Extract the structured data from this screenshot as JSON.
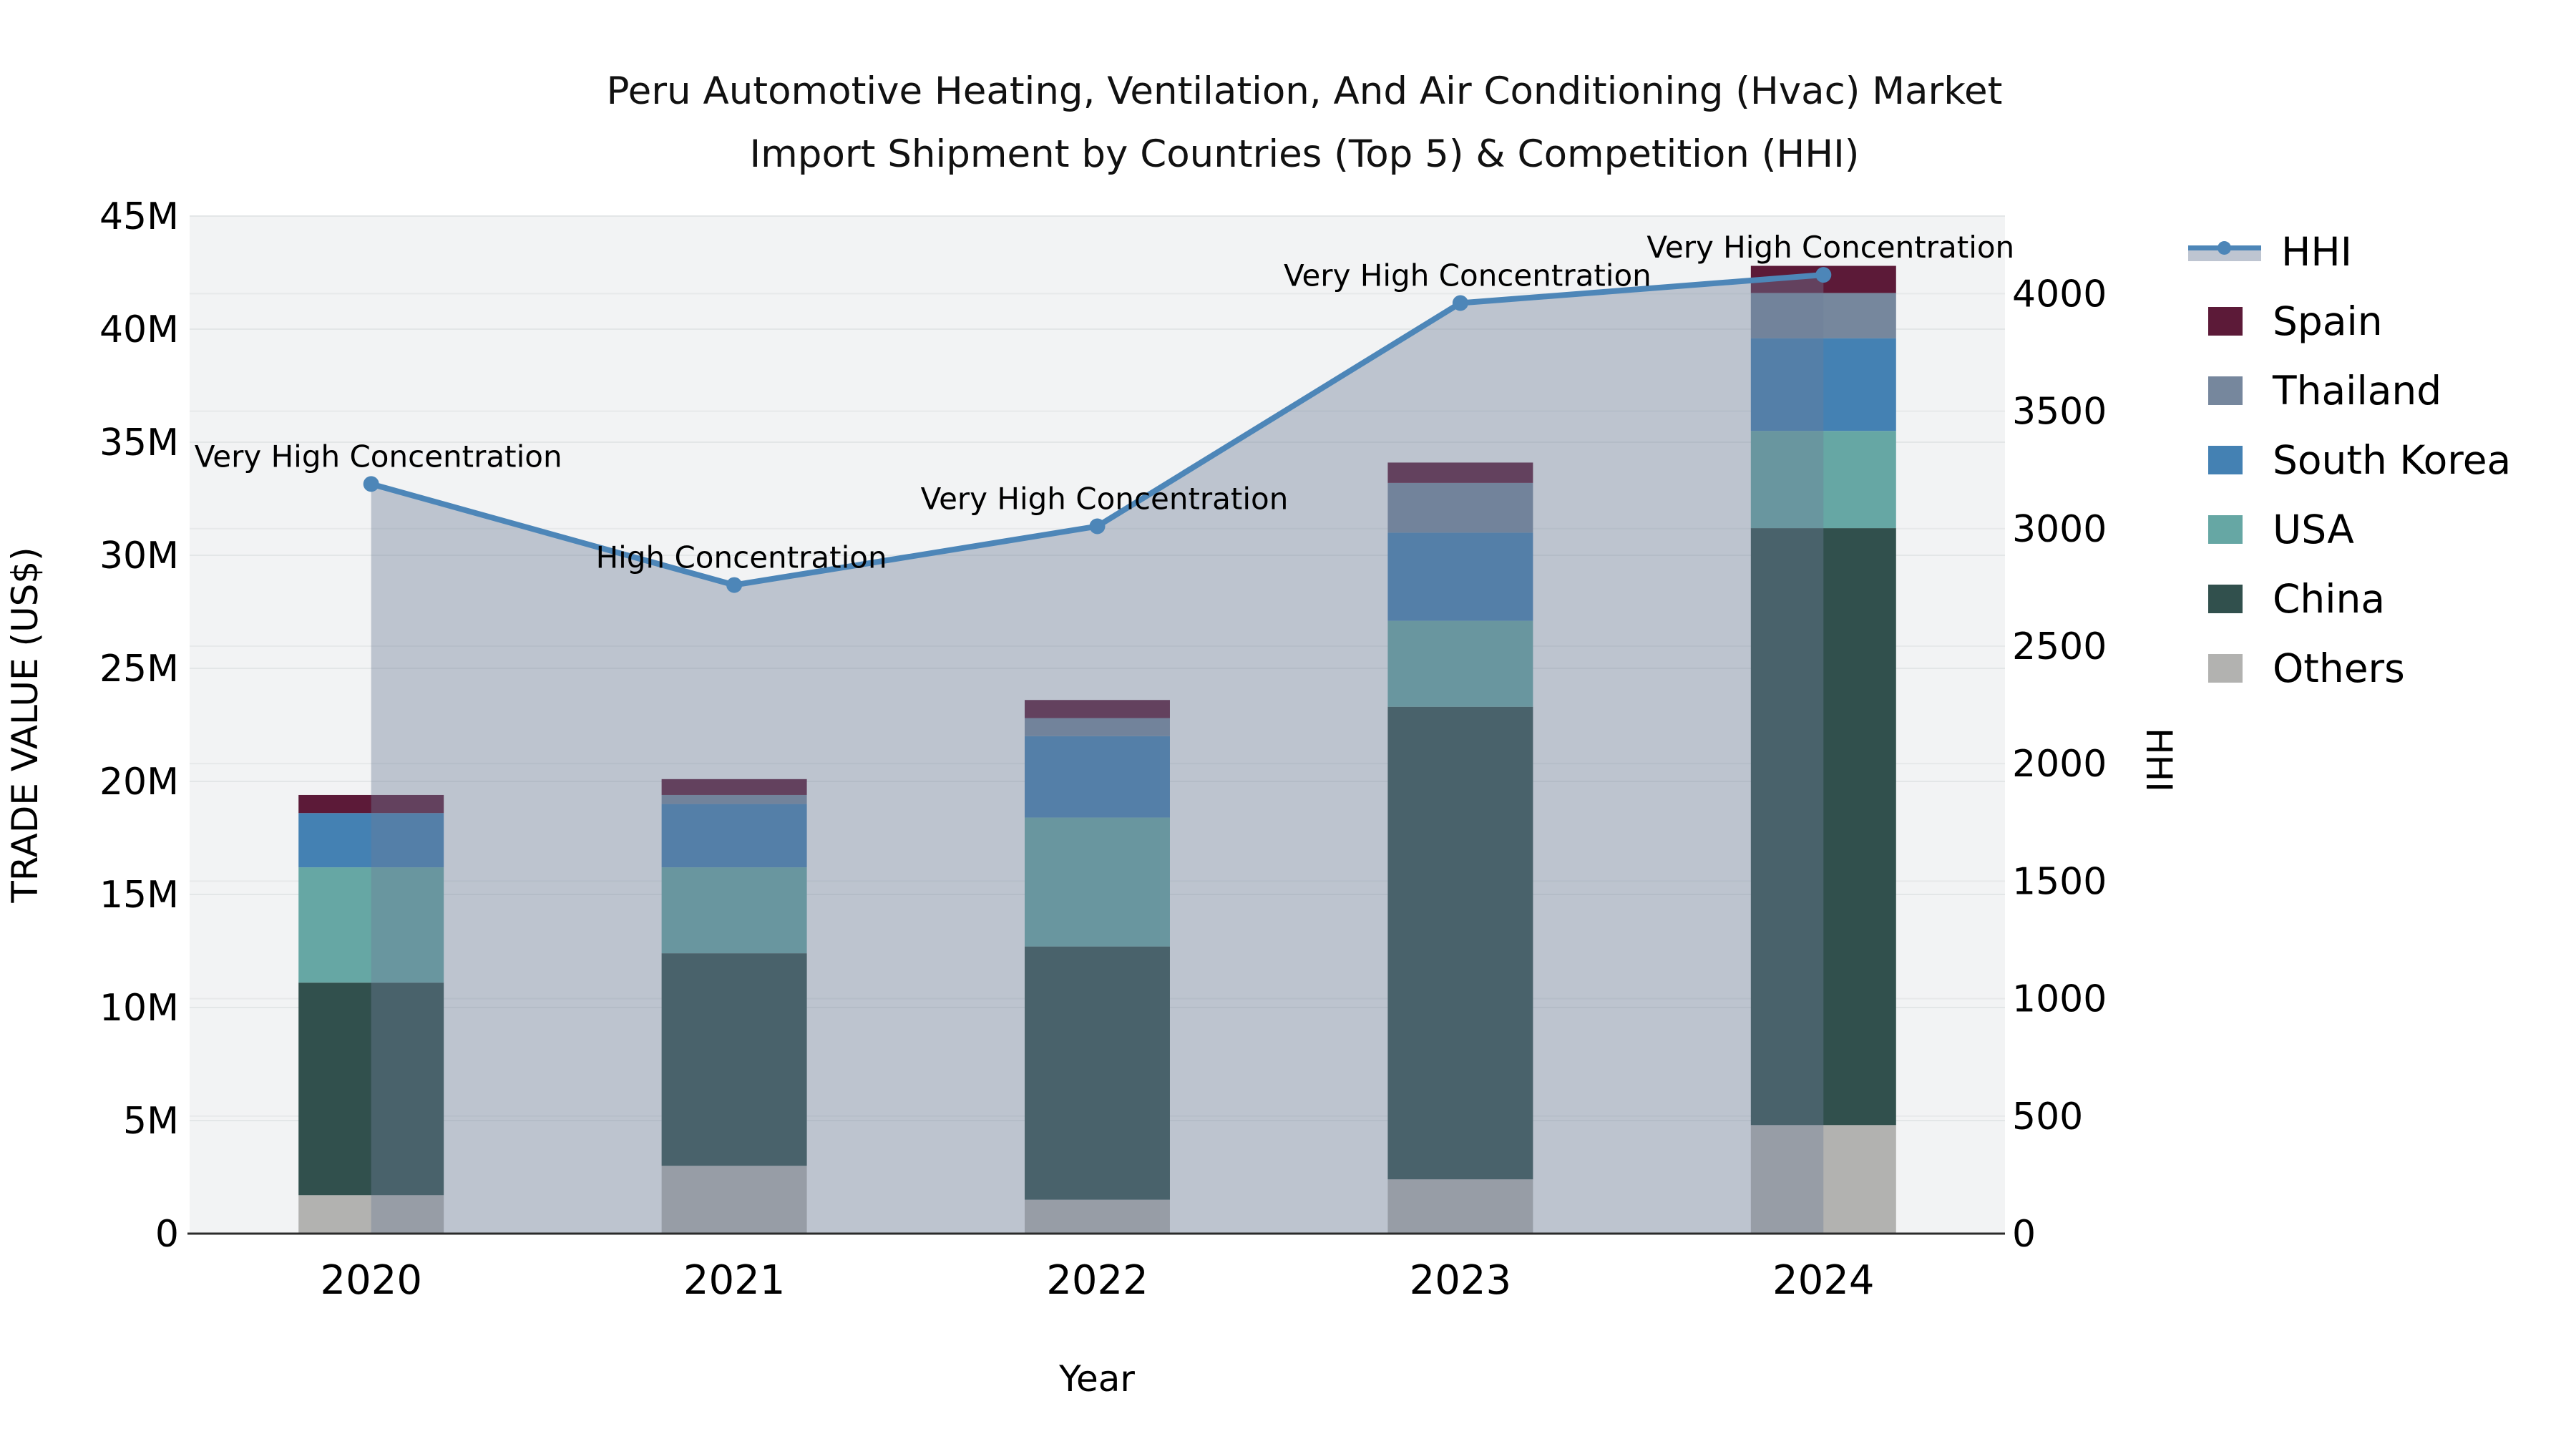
{
  "title": {
    "line1": "Peru Automotive Heating, Ventilation, And Air Conditioning (Hvac) Market",
    "line2": "Import Shipment by Countries (Top 5) & Competition (HHI)"
  },
  "legend": {
    "items": [
      {
        "label": "HHI",
        "type": "line",
        "color": "#4d86b8"
      },
      {
        "label": "Spain",
        "type": "swatch",
        "color": "#5c1a38"
      },
      {
        "label": "Thailand",
        "type": "swatch",
        "color": "#76879d"
      },
      {
        "label": "South Korea",
        "type": "swatch",
        "color": "#4481b3"
      },
      {
        "label": "USA",
        "type": "swatch",
        "color": "#66a7a4"
      },
      {
        "label": "China",
        "type": "swatch",
        "color": "#31504d"
      },
      {
        "label": "Others",
        "type": "swatch",
        "color": "#b2b2b0"
      }
    ]
  },
  "chart_data": {
    "type": "combo: stacked-bar + line-with-area",
    "categories": [
      "2020",
      "2021",
      "2022",
      "2023",
      "2024"
    ],
    "unit": "Trade value in millions of US$ (left axis), HHI index (right axis)",
    "stack_order_bottom_to_top": [
      "Others",
      "China",
      "USA",
      "South Korea",
      "Thailand",
      "Spain"
    ],
    "series": [
      {
        "name": "Others",
        "color": "#b2b2b0",
        "values": [
          1.7,
          3.0,
          1.5,
          2.4,
          4.8
        ]
      },
      {
        "name": "China",
        "color": "#31504d",
        "values": [
          9.4,
          9.4,
          11.2,
          20.9,
          26.4
        ]
      },
      {
        "name": "USA",
        "color": "#66a7a4",
        "values": [
          5.1,
          3.8,
          5.7,
          3.8,
          4.3
        ]
      },
      {
        "name": "South Korea",
        "color": "#4481b3",
        "values": [
          2.4,
          2.8,
          3.6,
          3.9,
          4.1
        ]
      },
      {
        "name": "Thailand",
        "color": "#76879d",
        "values": [
          0.0,
          0.4,
          0.8,
          2.2,
          2.0
        ]
      },
      {
        "name": "Spain",
        "color": "#5c1a38",
        "values": [
          0.8,
          0.7,
          0.8,
          0.9,
          1.2
        ]
      }
    ],
    "totals_millions": [
      19.4,
      20.1,
      23.6,
      34.1,
      42.8
    ],
    "line": {
      "name": "HHI",
      "color": "#4d86b8",
      "area_fill": "rgba(110,126,152,0.40)",
      "values": [
        3190,
        2760,
        3010,
        3960,
        4080
      ]
    },
    "annotations": [
      {
        "category": "2020",
        "text": "Very High Concentration"
      },
      {
        "category": "2021",
        "text": "High Concentration"
      },
      {
        "category": "2022",
        "text": "Very High Concentration"
      },
      {
        "category": "2023",
        "text": "Very High Concentration"
      },
      {
        "category": "2024",
        "text": "Very High Concentration"
      }
    ],
    "axis_left": {
      "label": "TRADE VALUE (US$)",
      "ticks": [
        "0",
        "5M",
        "10M",
        "15M",
        "20M",
        "25M",
        "30M",
        "35M",
        "40M",
        "45M"
      ],
      "range_millions": [
        0,
        45
      ]
    },
    "axis_right": {
      "label": "HHI",
      "ticks": [
        "0",
        "500",
        "1000",
        "1500",
        "2000",
        "2500",
        "3000",
        "3500",
        "4000"
      ],
      "range": [
        0,
        4330
      ]
    },
    "axis_x": {
      "label": "Year"
    },
    "grid": true,
    "legend_position": "right"
  }
}
